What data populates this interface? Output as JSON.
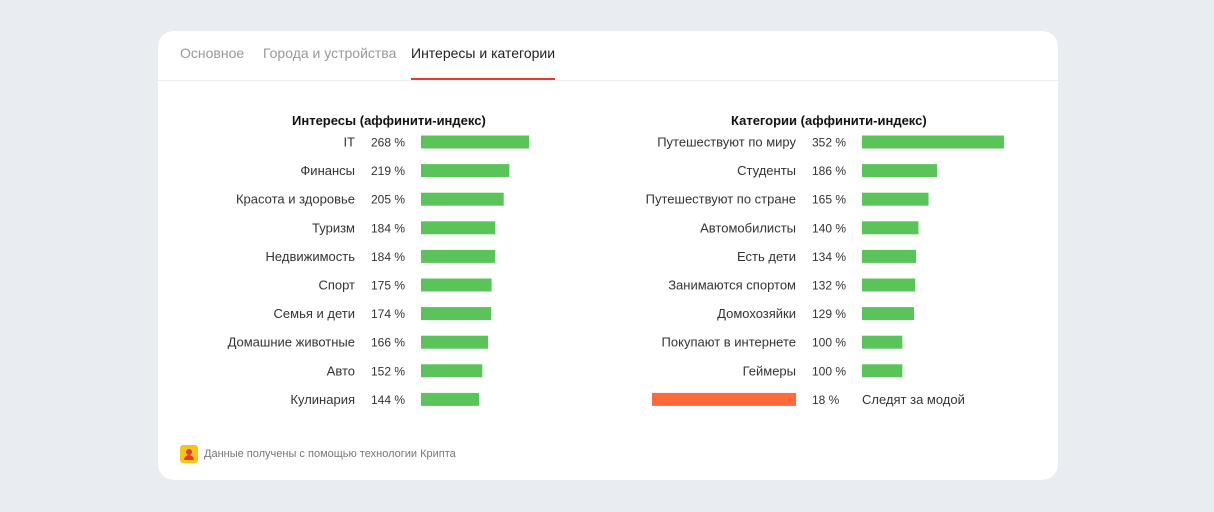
{
  "tabs": {
    "main": "Основное",
    "cities": "Города и устройства",
    "interests": "Интересы и категории"
  },
  "footer": {
    "text": "Данные получены с помощью технологии Крипта"
  },
  "colors": {
    "bar_green": "#5ac35a",
    "bar_orange": "#ff6a3d",
    "tab_underline": "#e53935"
  },
  "chart_data": [
    {
      "type": "bar",
      "orientation": "horizontal",
      "title": "Интересы (аффинити-индекс)",
      "categories": [
        "IT",
        "Финансы",
        "Красота и здоровье",
        "Туризм",
        "Недвижимость",
        "Спорт",
        "Семья и дети",
        "Домашние животные",
        "Авто",
        "Кулинария"
      ],
      "values": [
        268,
        219,
        205,
        184,
        184,
        175,
        174,
        166,
        152,
        144
      ],
      "value_labels": [
        "268 %",
        "219 %",
        "205 %",
        "184 %",
        "184 %",
        "175 %",
        "174 %",
        "166 %",
        "152 %",
        "144 %"
      ],
      "unit": "%"
    },
    {
      "type": "bar",
      "orientation": "horizontal",
      "title": "Категории (аффинити-индекс)",
      "categories": [
        "Путешествуют по миру",
        "Студенты",
        "Путешествуют по стране",
        "Автомобилисты",
        "Есть дети",
        "Занимаются спортом",
        "Домохозяйки",
        "Покупают в интернете",
        "Геймеры",
        "Следят за модой"
      ],
      "values": [
        352,
        186,
        165,
        140,
        134,
        132,
        129,
        100,
        100,
        18
      ],
      "value_labels": [
        "352 %",
        "186 %",
        "165 %",
        "140 %",
        "134 %",
        "132 %",
        "129 %",
        "100 %",
        "100 %",
        "18 %"
      ],
      "unit": "%",
      "highlight": "Следят за модой"
    }
  ]
}
